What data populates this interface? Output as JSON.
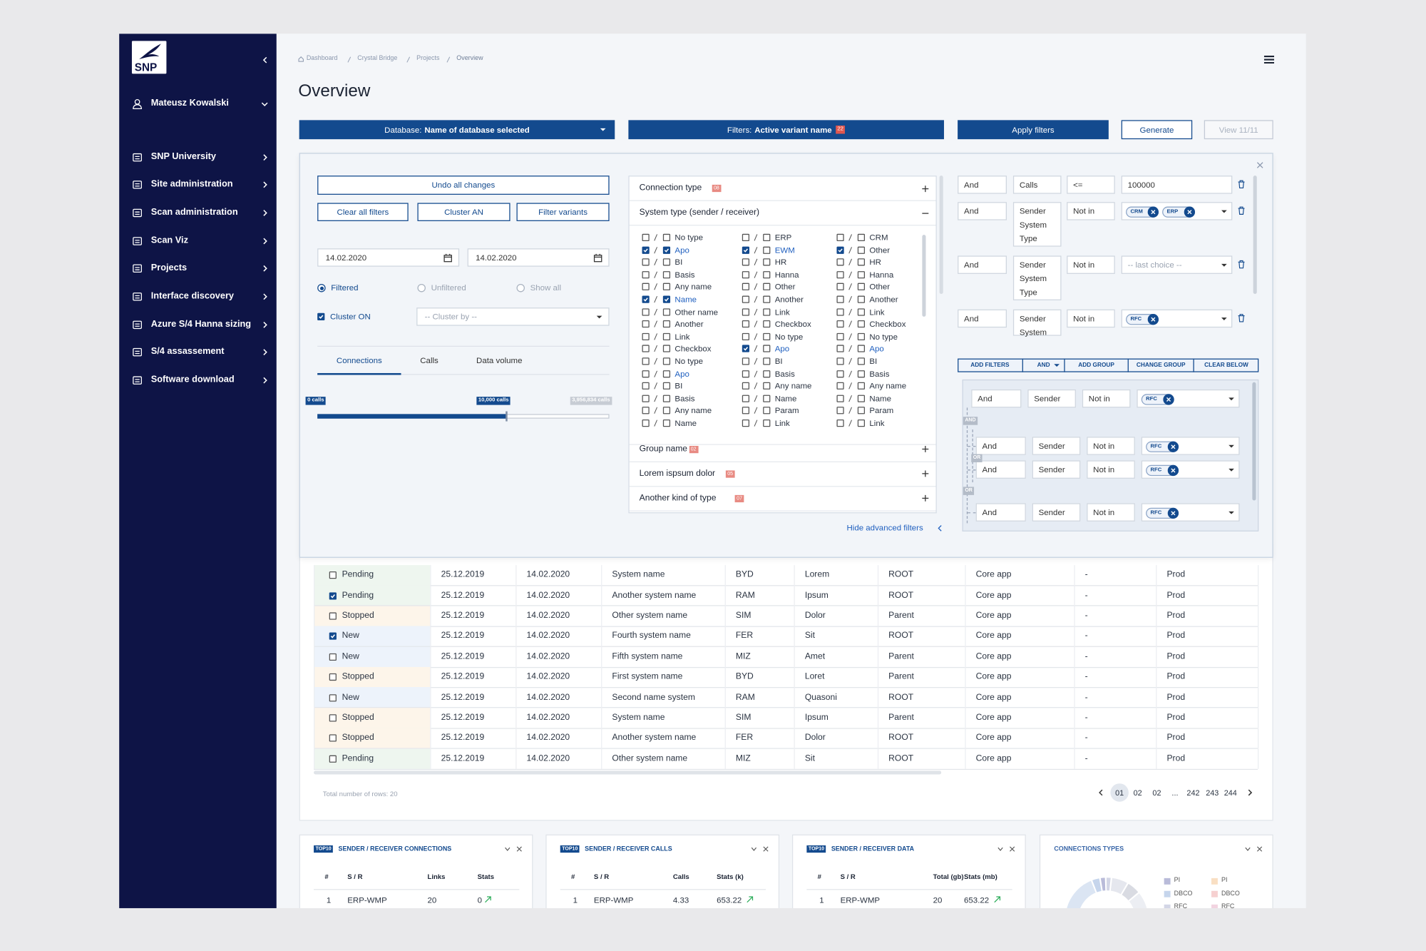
{
  "sidebar": {
    "logo": "SNP",
    "user": "Mateusz Kowalski",
    "menu": [
      "SNP University",
      "Site administration",
      "Scan administration",
      "Scan Viz",
      "Projects",
      "Interface discovery",
      "Azure S/4 Hanna sizing",
      "S/4 assassement",
      "Software download"
    ]
  },
  "breadcrumb": [
    "Dashboard",
    "Crystal Bridge",
    "Projects",
    "Overview"
  ],
  "title": "Overview",
  "toolbar": {
    "database_label": "Database:",
    "database_value": "Name of database selected",
    "filters_label": "Filters:",
    "filters_value": "Active variant name",
    "filters_count": "22",
    "apply": "Apply filters",
    "generate": "Generate",
    "view": "View 11/11"
  },
  "filters": {
    "undo": "Undo all changes",
    "buttons": [
      "Clear all filters",
      "Cluster AN",
      "Filter variants"
    ],
    "date_from": "14.02.2020",
    "date_to": "14.02.2020",
    "radios": [
      "Filtered",
      "Unfiltered",
      "Show all"
    ],
    "radio_selected": 0,
    "cluster": "Cluster ON",
    "cluster_checked": true,
    "cluster_select": "-- Cluster by --",
    "tabs": [
      "Connections",
      "Calls",
      "Data volume"
    ],
    "tab_selected": 0,
    "slider": {
      "min_label": "0 calls",
      "value_label": "10,000 calls",
      "max_label": "3,956,834 calls"
    },
    "sections": [
      {
        "title": "Connection type",
        "count": "08",
        "open": false
      },
      {
        "title": "System type (sender / receiver)",
        "open": true,
        "columns": [
          [
            {
              "label": "No type",
              "checked": [
                false,
                false
              ]
            },
            {
              "label": "Apo",
              "checked": [
                true,
                true
              ],
              "highlight": true
            },
            {
              "label": "BI",
              "checked": [
                false,
                false
              ]
            },
            {
              "label": "Basis",
              "checked": [
                false,
                false
              ]
            },
            {
              "label": "Any name",
              "checked": [
                false,
                false
              ]
            },
            {
              "label": "Name",
              "checked": [
                true,
                true
              ],
              "highlight": true
            },
            {
              "label": "Other name",
              "checked": [
                false,
                false
              ]
            },
            {
              "label": "Another",
              "checked": [
                false,
                false
              ]
            },
            {
              "label": "Link",
              "checked": [
                false,
                false
              ]
            },
            {
              "label": "Checkbox",
              "checked": [
                false,
                false
              ]
            },
            {
              "label": "No type",
              "checked": [
                false,
                false
              ]
            },
            {
              "label": "Apo",
              "checked": [
                false,
                false
              ],
              "highlight": true
            },
            {
              "label": "BI",
              "checked": [
                false,
                false
              ]
            },
            {
              "label": "Basis",
              "checked": [
                false,
                false
              ]
            },
            {
              "label": "Any name",
              "checked": [
                false,
                false
              ]
            },
            {
              "label": "Name",
              "checked": [
                false,
                false
              ]
            }
          ],
          [
            {
              "label": "ERP",
              "checked": [
                false,
                false
              ]
            },
            {
              "label": "EWM",
              "checked": [
                true,
                false
              ],
              "highlight": true
            },
            {
              "label": "HR",
              "checked": [
                false,
                false
              ]
            },
            {
              "label": "Hanna",
              "checked": [
                false,
                false
              ]
            },
            {
              "label": "Other",
              "checked": [
                false,
                false
              ]
            },
            {
              "label": "Another",
              "checked": [
                false,
                false
              ]
            },
            {
              "label": "Link",
              "checked": [
                false,
                false
              ]
            },
            {
              "label": "Checkbox",
              "checked": [
                false,
                false
              ]
            },
            {
              "label": "No type",
              "checked": [
                false,
                false
              ]
            },
            {
              "label": "Apo",
              "checked": [
                true,
                false
              ],
              "highlight": true
            },
            {
              "label": "BI",
              "checked": [
                false,
                false
              ]
            },
            {
              "label": "Basis",
              "checked": [
                false,
                false
              ]
            },
            {
              "label": "Any name",
              "checked": [
                false,
                false
              ]
            },
            {
              "label": "Name",
              "checked": [
                false,
                false
              ]
            },
            {
              "label": "Param",
              "checked": [
                false,
                false
              ]
            },
            {
              "label": "Link",
              "checked": [
                false,
                false
              ]
            }
          ],
          [
            {
              "label": "CRM",
              "checked": [
                false,
                false
              ]
            },
            {
              "label": "Other",
              "checked": [
                true,
                false
              ]
            },
            {
              "label": "HR",
              "checked": [
                false,
                false
              ]
            },
            {
              "label": "Hanna",
              "checked": [
                false,
                false
              ]
            },
            {
              "label": "Other",
              "checked": [
                false,
                false
              ]
            },
            {
              "label": "Another",
              "checked": [
                false,
                false
              ]
            },
            {
              "label": "Link",
              "checked": [
                false,
                false
              ]
            },
            {
              "label": "Checkbox",
              "checked": [
                false,
                false
              ]
            },
            {
              "label": "No type",
              "checked": [
                false,
                false
              ]
            },
            {
              "label": "Apo",
              "checked": [
                false,
                false
              ],
              "highlight": true
            },
            {
              "label": "BI",
              "checked": [
                false,
                false
              ]
            },
            {
              "label": "Basis",
              "checked": [
                false,
                false
              ]
            },
            {
              "label": "Any name",
              "checked": [
                false,
                false
              ]
            },
            {
              "label": "Name",
              "checked": [
                false,
                false
              ]
            },
            {
              "label": "Param",
              "checked": [
                false,
                false
              ]
            },
            {
              "label": "Link",
              "checked": [
                false,
                false
              ]
            }
          ]
        ]
      },
      {
        "title": "Group name",
        "count": "02",
        "open": false
      },
      {
        "title": "Lorem ispsum dolor",
        "count": "05",
        "open": false
      },
      {
        "title": "Another kind of type",
        "count": "07",
        "open": false
      }
    ],
    "hide": "Hide advanced filters",
    "rules": [
      {
        "join": "And",
        "field": "Calls",
        "op": "<=",
        "value": "100000"
      },
      {
        "join": "And",
        "field": "Sender System Type",
        "op": "Not in",
        "tags": [
          "CRM",
          "ERP"
        ]
      },
      {
        "join": "And",
        "field": "Sender System Type",
        "op": "Not in",
        "placeholder": "-- last choice --"
      },
      {
        "join": "And",
        "field": "Sender System",
        "op": "Not in",
        "tags": [
          "RFC"
        ]
      }
    ],
    "actions": [
      "ADD FILTERS",
      "AND",
      "ADD GROUP",
      "CHANGE GROUP",
      "CLEAR BELOW"
    ],
    "group": {
      "rows": [
        {
          "join": "And",
          "field": "Sender",
          "op": "Not in",
          "tags": [
            "RFC"
          ]
        },
        {
          "join": "And",
          "field": "Sender",
          "op": "Not in",
          "tags": [
            "RFC"
          ]
        },
        {
          "join": "And",
          "field": "Sender",
          "op": "Not in",
          "tags": [
            "RFC"
          ]
        },
        {
          "join": "And",
          "field": "Sender",
          "op": "Not in",
          "tags": [
            "RFC"
          ]
        }
      ],
      "connectors": [
        "AND",
        "OR",
        "OR"
      ]
    }
  },
  "table": {
    "status_colors": {
      "Pending": "#eef6ef",
      "Stopped": "#fdf5ea",
      "New": "#edf3fb"
    },
    "rows": [
      {
        "checked": false,
        "cells": [
          "Pending",
          "25.12.2019",
          "14.02.2020",
          "System name",
          "BYD",
          "Lorem",
          "ROOT",
          "Core app",
          "-",
          "Prod"
        ]
      },
      {
        "checked": true,
        "cells": [
          "Pending",
          "25.12.2019",
          "14.02.2020",
          "Another system name",
          "RAM",
          "Ipsum",
          "ROOT",
          "Core app",
          "-",
          "Prod"
        ]
      },
      {
        "checked": false,
        "cells": [
          "Stopped",
          "25.12.2019",
          "14.02.2020",
          "Other system name",
          "SIM",
          "Dolor",
          "Parent",
          "Core app",
          "-",
          "Prod"
        ]
      },
      {
        "checked": true,
        "cells": [
          "New",
          "25.12.2019",
          "14.02.2020",
          "Fourth system name",
          "FER",
          "Sit",
          "ROOT",
          "Core app",
          "-",
          "Prod"
        ]
      },
      {
        "checked": false,
        "cells": [
          "New",
          "25.12.2019",
          "14.02.2020",
          "Fifth system name",
          "MIZ",
          "Amet",
          "Parent",
          "Core app",
          "-",
          "Prod"
        ]
      },
      {
        "checked": false,
        "cells": [
          "Stopped",
          "25.12.2019",
          "14.02.2020",
          "First system name",
          "BYD",
          "Loret",
          "Parent",
          "Core app",
          "-",
          "Prod"
        ]
      },
      {
        "checked": false,
        "cells": [
          "New",
          "25.12.2019",
          "14.02.2020",
          "Second name system",
          "RAM",
          "Quasoni",
          "ROOT",
          "Core app",
          "-",
          "Prod"
        ]
      },
      {
        "checked": false,
        "cells": [
          "Stopped",
          "25.12.2019",
          "14.02.2020",
          "System name",
          "SIM",
          "Ipsum",
          "Parent",
          "Core app",
          "-",
          "Prod"
        ]
      },
      {
        "checked": false,
        "cells": [
          "Stopped",
          "25.12.2019",
          "14.02.2020",
          "Another system name",
          "FER",
          "Dolor",
          "ROOT",
          "Core app",
          "-",
          "Prod"
        ]
      },
      {
        "checked": false,
        "cells": [
          "Pending",
          "25.12.2019",
          "14.02.2020",
          "Other system name",
          "MIZ",
          "Sit",
          "ROOT",
          "Core app",
          "-",
          "Prod"
        ]
      }
    ],
    "total": "Total number of rows: 20",
    "pages": [
      "01",
      "02",
      "02",
      "...",
      "242",
      "243",
      "244"
    ],
    "current_page": 0
  },
  "widgets": [
    {
      "badge": "TOP10",
      "title": "SENDER / RECEIVER CONNECTIONS",
      "headers": [
        "#",
        "S / R",
        "Links",
        "Stats"
      ],
      "rows": [
        [
          "1",
          "ERP-WMP",
          "20",
          "0"
        ]
      ]
    },
    {
      "badge": "TOP10",
      "title": "SENDER / RECEIVER CALLS",
      "headers": [
        "#",
        "S / R",
        "Calls",
        "Stats (k)"
      ],
      "rows": [
        [
          "1",
          "ERP-WMP",
          "4.33",
          "653.22"
        ]
      ]
    },
    {
      "badge": "TOP10",
      "title": "SENDER / RECEIVER DATA",
      "headers": [
        "#",
        "S / R",
        "Total (gb)",
        "Stats (mb)"
      ],
      "rows": [
        [
          "1",
          "ERP-WMP",
          "20",
          "653.22"
        ]
      ]
    },
    {
      "title": "CONNECTIONS TYPES",
      "legend": [
        {
          "label": "PI",
          "color": "#b9bbd9"
        },
        {
          "label": "DBCO",
          "color": "#c6d5ec"
        },
        {
          "label": "RFC",
          "color": "#d3d6e6"
        },
        {
          "label": "PI",
          "color": "#f9dfc3"
        },
        {
          "label": "DBCO",
          "color": "#f6d0d0"
        },
        {
          "label": "RFC",
          "color": "#f2d4e0"
        }
      ]
    }
  ]
}
